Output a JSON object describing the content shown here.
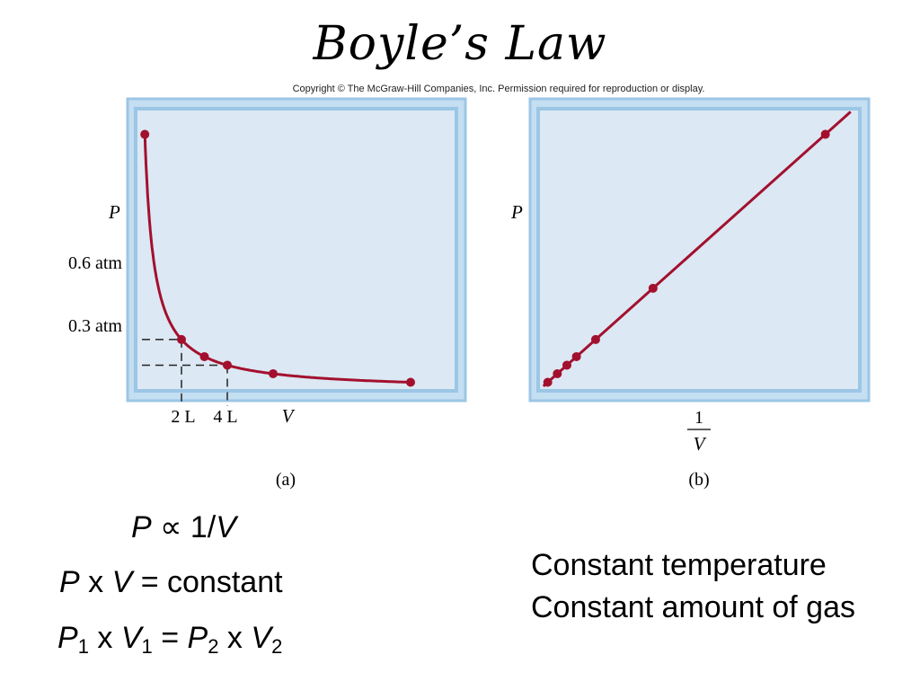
{
  "slide": {
    "title": "Boyle’s Law",
    "copyright": "Copyright © The McGraw-Hill Companies, Inc. Permission required for reproduction or display."
  },
  "colors": {
    "curve": "#a3102e",
    "panel_fill": "#dce8f3",
    "panel_border": "#9cc6e6",
    "panel_border_light": "#c4def2"
  },
  "chart_data": [
    {
      "type": "line",
      "panel_label": "(a)",
      "ylabel": "P",
      "xlabel": "V",
      "x_tick_labels": [
        "2 L",
        "4 L"
      ],
      "y_tick_labels": [
        "0.6 atm",
        "0.3 atm"
      ],
      "x": [
        0.4,
        2,
        3,
        4,
        6,
        12
      ],
      "y": [
        3.0,
        0.6,
        0.4,
        0.3,
        0.2,
        0.1
      ],
      "xlim": [
        0,
        14
      ],
      "ylim": [
        0,
        3.3
      ],
      "grid": false,
      "curve": "P = 1.2 / V"
    },
    {
      "type": "line",
      "panel_label": "(b)",
      "ylabel": "P",
      "xlabel_numerator": "1",
      "xlabel_denominator": "V",
      "x": [
        0.0833,
        0.1667,
        0.25,
        0.3333,
        0.5,
        1.0,
        2.5
      ],
      "y": [
        0.1,
        0.2,
        0.3,
        0.4,
        0.6,
        1.2,
        3.0
      ],
      "xlim": [
        0,
        2.8
      ],
      "ylim": [
        0,
        3.3
      ],
      "grid": false
    }
  ],
  "equations": {
    "line1": {
      "p": "P",
      "rest": " ∝ 1/",
      "v": "V"
    },
    "line2": {
      "p": "P",
      "x": " x ",
      "v": "V",
      "rest": " = constant"
    },
    "line3": {
      "p1": "P",
      "s1": "1",
      "x1": " x ",
      "v1": "V",
      "s2": "1",
      "eq": " = ",
      "p2": "P",
      "s3": "2",
      "x2": " x ",
      "v2": "V",
      "s4": "2"
    }
  },
  "conditions": {
    "line1": "Constant temperature",
    "line2": "Constant amount of gas"
  }
}
